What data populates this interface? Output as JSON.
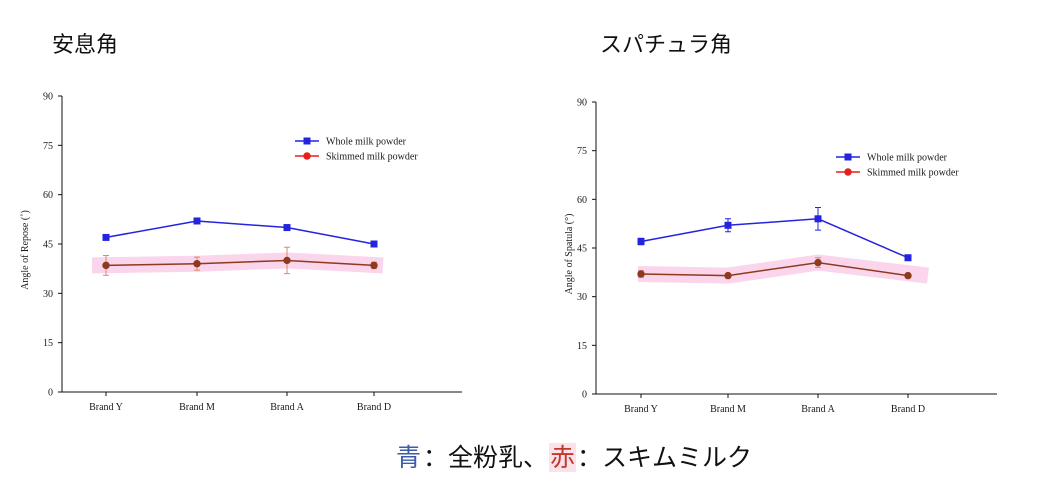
{
  "caption": {
    "blue_label": "青",
    "blue_text": "：全粉乳、",
    "red_label": "赤",
    "red_text": "：スキムミルク",
    "blue_color": "#3d5ba9",
    "red_color": "#c0392b",
    "red_highlight_color": "#fbe1ea"
  },
  "chart_data": [
    {
      "type": "line",
      "title": "安息角",
      "xlabel": "",
      "ylabel": "Angle of Repose (˚)",
      "categories": [
        "Brand Y",
        "Brand M",
        "Brand A",
        "Brand D"
      ],
      "ylim": [
        0,
        90
      ],
      "yticks": [
        0,
        15,
        30,
        45,
        60,
        75,
        90
      ],
      "grid": false,
      "legend_position": "top-right",
      "series": [
        {
          "name": "Whole milk powder",
          "color": "#2424e0",
          "marker": "square",
          "values": [
            47,
            52,
            50,
            45
          ],
          "errors": [
            0,
            0,
            0,
            0
          ]
        },
        {
          "name": "Skimmed milk powder",
          "color": "#e5201c",
          "plot_color": "#8e3a1e",
          "error_color": "#d98a72",
          "highlight_color": "#f6b9de",
          "marker": "circle",
          "values": [
            38.5,
            39,
            40,
            38.5
          ],
          "errors": [
            3,
            2,
            4,
            1
          ]
        }
      ]
    },
    {
      "type": "line",
      "title": "スパチュラ角",
      "xlabel": "",
      "ylabel": "Angle of Spatula (°)",
      "categories": [
        "Brand Y",
        "Brand M",
        "Brand A",
        "Brand D"
      ],
      "ylim": [
        0,
        90
      ],
      "yticks": [
        0,
        15,
        30,
        45,
        60,
        75,
        90
      ],
      "grid": false,
      "legend_position": "top-right",
      "series": [
        {
          "name": "Whole milk powder",
          "color": "#2424e0",
          "marker": "square",
          "values": [
            47,
            52,
            54,
            42
          ],
          "errors": [
            1,
            2,
            3.5,
            0.5
          ]
        },
        {
          "name": "Skimmed milk powder",
          "color": "#e5201c",
          "plot_color": "#8e3a1e",
          "error_color": "#d98a72",
          "highlight_color": "#f6b9de",
          "marker": "circle",
          "values": [
            37,
            36.5,
            40.5,
            36.5
          ],
          "errors": [
            1,
            0.5,
            1.5,
            0.5
          ]
        }
      ]
    }
  ]
}
